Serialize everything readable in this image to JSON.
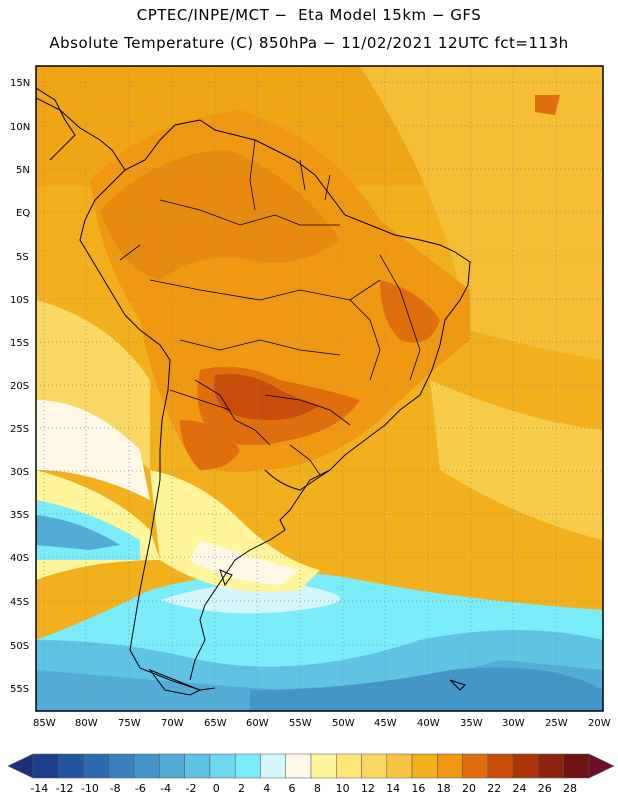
{
  "title": {
    "line1": "CPTEC/INPE/MCT −  Eta Model 15km − GFS",
    "line2": "Absolute Temperature (C) 850hPa − 11/02/2021 12UTC fct=113h"
  },
  "map": {
    "lat_labels": [
      "15N",
      "10N",
      "5N",
      "EQ",
      "5S",
      "10S",
      "15S",
      "20S",
      "25S",
      "30S",
      "35S",
      "40S",
      "45S",
      "50S",
      "55S"
    ],
    "lon_labels": [
      "85W",
      "80W",
      "75W",
      "70W",
      "65W",
      "60W",
      "55W",
      "50W",
      "45W",
      "40W",
      "35W",
      "30W",
      "25W",
      "20W"
    ]
  },
  "colorbar": {
    "labels": [
      "-14",
      "-12",
      "-10",
      "-8",
      "-6",
      "-4",
      "-2",
      "0",
      "2",
      "4",
      "6",
      "8",
      "10",
      "12",
      "14",
      "16",
      "18",
      "20",
      "22",
      "24",
      "26",
      "28"
    ],
    "colors": [
      "#1c3f8c",
      "#2356a0",
      "#2d6bb0",
      "#3a80bd",
      "#4596c8",
      "#52acd6",
      "#5fc4e4",
      "#6fd8ef",
      "#7aecfa",
      "#d4f6fc",
      "#fff8e6",
      "#fff59a",
      "#ffe678",
      "#fbd763",
      "#f5c543",
      "#f2b01c",
      "#f09812",
      "#e06e0c",
      "#c94c0a",
      "#ae340a",
      "#8e240f",
      "#6e1616"
    ],
    "low_arrow": "#1c2f7a",
    "high_arrow": "#6e0f2a"
  }
}
